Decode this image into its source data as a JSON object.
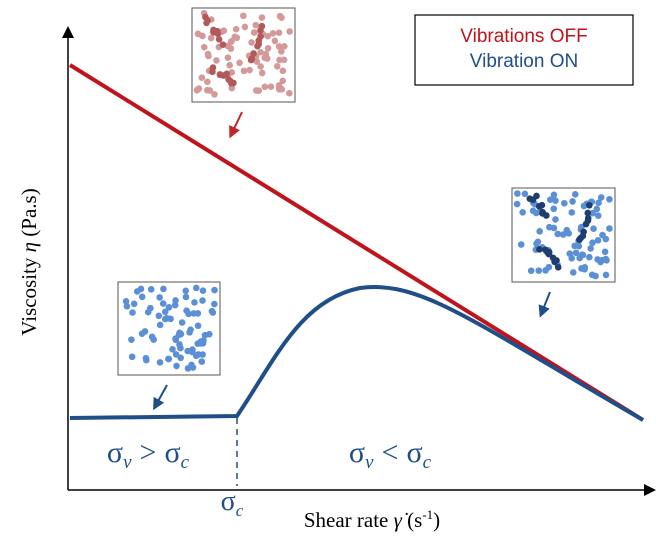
{
  "legend": {
    "off": "Vibrations OFF",
    "on": "Vibration ON"
  },
  "axes": {
    "y": {
      "name": "Viscosity",
      "symbol": "η",
      "unit": "(Pa.s)"
    },
    "x": {
      "name": "Shear rate",
      "symbol": "γ̇",
      "unit_open": "(s",
      "unit_exp": "-1",
      "unit_close": ")"
    }
  },
  "regions": [
    {
      "left": "σ",
      "left_sub": "v",
      "op": ">",
      "right": "σ",
      "right_sub": "c"
    },
    {
      "left": "σ",
      "left_sub": "v",
      "op": "<",
      "right": "σ",
      "right_sub": "c"
    }
  ],
  "critical": {
    "symbol": "σ",
    "sub": "c"
  }
}
